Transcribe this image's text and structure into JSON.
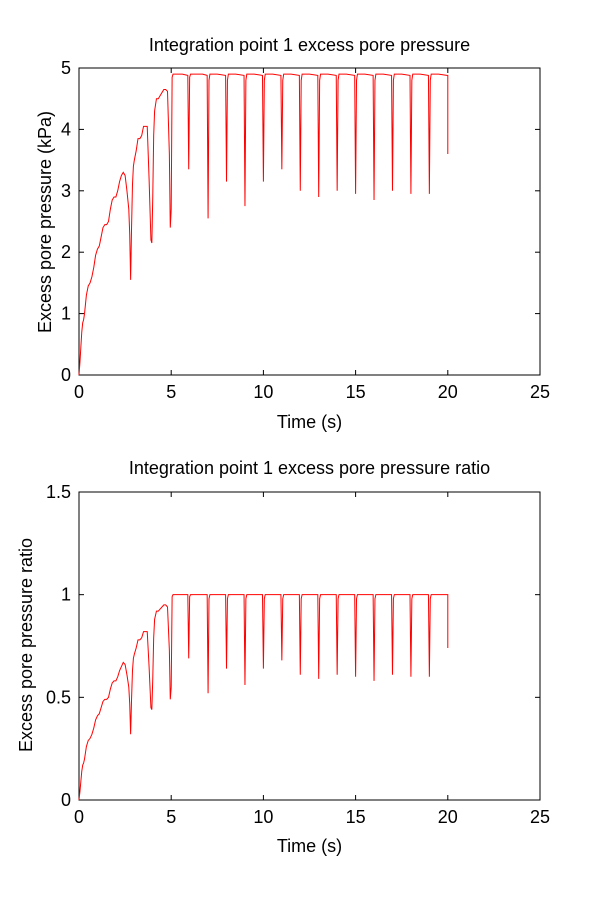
{
  "chart_data": [
    {
      "type": "line",
      "title": "Integration point 1 excess pore pressure",
      "xlabel": "Time (s)",
      "ylabel": "Excess pore pressure (kPa)",
      "xlim": [
        0,
        25
      ],
      "ylim": [
        0,
        5
      ],
      "xticks": [
        "0",
        "5",
        "10",
        "15",
        "20",
        "25"
      ],
      "yticks": [
        "0",
        "1",
        "2",
        "3",
        "4",
        "5"
      ],
      "grid": false,
      "line_color": "#ff0000",
      "series": [
        {
          "x": [
            0,
            0.05,
            0.1,
            0.15,
            0.2,
            0.25,
            0.3,
            0.35,
            0.4,
            0.5,
            0.6,
            0.7,
            0.8,
            0.9,
            1.0,
            1.1,
            1.2,
            1.3,
            1.4,
            1.5,
            1.6,
            1.7,
            1.8,
            1.9,
            2.0,
            2.1,
            2.2,
            2.3,
            2.4,
            2.5,
            2.6,
            2.7,
            2.75,
            2.8,
            2.85,
            2.9,
            2.95,
            3.0,
            3.1,
            3.2,
            3.3,
            3.4,
            3.5,
            3.6,
            3.7,
            3.8,
            3.9,
            3.95,
            4.0,
            4.05,
            4.1,
            4.2,
            4.3,
            4.4,
            4.5,
            4.6,
            4.7,
            4.8,
            4.9,
            4.95,
            5.0,
            5.05,
            5.1,
            5.3,
            5.6,
            5.9,
            5.95,
            6.0,
            6.05,
            6.1,
            6.4,
            6.7,
            6.95,
            7.0,
            7.05,
            7.1,
            7.5,
            7.95,
            8.0,
            8.05,
            8.1,
            8.5,
            8.95,
            9.0,
            9.05,
            9.1,
            9.5,
            9.95,
            10.0,
            10.05,
            10.1,
            10.5,
            10.95,
            11.0,
            11.05,
            11.1,
            11.5,
            11.95,
            12.0,
            12.05,
            12.1,
            12.5,
            12.95,
            13.0,
            13.05,
            13.1,
            13.5,
            13.95,
            14.0,
            14.05,
            14.1,
            14.5,
            14.95,
            15.0,
            15.05,
            15.1,
            15.5,
            15.95,
            16.0,
            16.05,
            16.1,
            16.5,
            16.95,
            17.0,
            17.05,
            17.1,
            17.5,
            17.95,
            18.0,
            18.05,
            18.1,
            18.5,
            18.95,
            19.0,
            19.05,
            19.1,
            19.5,
            19.95,
            20.0,
            20.0
          ],
          "y": [
            0,
            0.2,
            0.45,
            0.7,
            0.85,
            0.9,
            1.0,
            1.15,
            1.3,
            1.45,
            1.5,
            1.6,
            1.75,
            1.95,
            2.05,
            2.1,
            2.25,
            2.4,
            2.45,
            2.45,
            2.5,
            2.7,
            2.85,
            2.9,
            2.9,
            3.0,
            3.15,
            3.25,
            3.3,
            3.25,
            3.0,
            2.7,
            2.3,
            1.55,
            2.4,
            3.1,
            3.4,
            3.5,
            3.65,
            3.85,
            3.85,
            3.9,
            4.05,
            4.05,
            4.05,
            3.2,
            2.2,
            2.15,
            2.9,
            3.9,
            4.3,
            4.5,
            4.5,
            4.55,
            4.6,
            4.65,
            4.65,
            4.62,
            3.6,
            2.4,
            2.7,
            4.85,
            4.9,
            4.9,
            4.9,
            4.88,
            3.35,
            4.85,
            4.9,
            4.9,
            4.9,
            4.9,
            4.88,
            2.55,
            4.8,
            4.9,
            4.9,
            4.88,
            3.15,
            4.8,
            4.9,
            4.9,
            4.88,
            2.75,
            4.8,
            4.9,
            4.9,
            4.88,
            3.15,
            4.8,
            4.9,
            4.9,
            4.88,
            3.35,
            4.8,
            4.9,
            4.9,
            4.88,
            3.0,
            4.8,
            4.9,
            4.9,
            4.88,
            2.9,
            4.8,
            4.9,
            4.9,
            4.88,
            3.0,
            4.8,
            4.9,
            4.9,
            4.88,
            2.95,
            4.8,
            4.9,
            4.9,
            4.88,
            2.85,
            4.8,
            4.9,
            4.9,
            4.88,
            3.0,
            4.8,
            4.9,
            4.9,
            4.88,
            2.95,
            4.8,
            4.9,
            4.9,
            4.88,
            2.95,
            4.8,
            4.9,
            4.9,
            4.88,
            4.88,
            3.6
          ]
        }
      ]
    },
    {
      "type": "line",
      "title": "Integration point 1 excess pore pressure ratio",
      "xlabel": "Time (s)",
      "ylabel": "Excess pore pressure ratio",
      "xlim": [
        0,
        25
      ],
      "ylim": [
        0,
        1.5
      ],
      "xticks": [
        "0",
        "5",
        "10",
        "15",
        "20",
        "25"
      ],
      "yticks": [
        "0",
        "0.5",
        "1",
        "1.5"
      ],
      "grid": false,
      "line_color": "#ff0000",
      "series": [
        {
          "x": [
            0,
            0.05,
            0.1,
            0.15,
            0.2,
            0.25,
            0.3,
            0.35,
            0.4,
            0.5,
            0.6,
            0.7,
            0.8,
            0.9,
            1.0,
            1.1,
            1.2,
            1.3,
            1.4,
            1.5,
            1.6,
            1.7,
            1.8,
            1.9,
            2.0,
            2.1,
            2.2,
            2.3,
            2.4,
            2.5,
            2.6,
            2.7,
            2.75,
            2.8,
            2.85,
            2.9,
            2.95,
            3.0,
            3.1,
            3.2,
            3.3,
            3.4,
            3.5,
            3.6,
            3.7,
            3.8,
            3.9,
            3.95,
            4.0,
            4.05,
            4.1,
            4.2,
            4.3,
            4.4,
            4.5,
            4.6,
            4.7,
            4.8,
            4.9,
            4.95,
            5.0,
            5.05,
            5.1,
            5.3,
            5.6,
            5.9,
            5.95,
            6.0,
            6.05,
            6.1,
            6.4,
            6.7,
            6.95,
            7.0,
            7.05,
            7.1,
            7.5,
            7.95,
            8.0,
            8.05,
            8.1,
            8.5,
            8.95,
            9.0,
            9.05,
            9.1,
            9.5,
            9.95,
            10.0,
            10.05,
            10.1,
            10.5,
            10.95,
            11.0,
            11.05,
            11.1,
            11.5,
            11.95,
            12.0,
            12.05,
            12.1,
            12.5,
            12.95,
            13.0,
            13.05,
            13.1,
            13.5,
            13.95,
            14.0,
            14.05,
            14.1,
            14.5,
            14.95,
            15.0,
            15.05,
            15.1,
            15.5,
            15.95,
            16.0,
            16.05,
            16.1,
            16.5,
            16.95,
            17.0,
            17.05,
            17.1,
            17.5,
            17.95,
            18.0,
            18.05,
            18.1,
            18.5,
            18.95,
            19.0,
            19.05,
            19.1,
            19.5,
            19.95,
            20.0,
            20.0
          ],
          "y": [
            0,
            0.04,
            0.09,
            0.14,
            0.17,
            0.18,
            0.2,
            0.23,
            0.26,
            0.29,
            0.3,
            0.32,
            0.35,
            0.39,
            0.41,
            0.42,
            0.45,
            0.48,
            0.49,
            0.49,
            0.5,
            0.54,
            0.57,
            0.58,
            0.58,
            0.6,
            0.63,
            0.65,
            0.67,
            0.66,
            0.61,
            0.55,
            0.47,
            0.32,
            0.49,
            0.63,
            0.69,
            0.71,
            0.74,
            0.78,
            0.78,
            0.79,
            0.82,
            0.82,
            0.82,
            0.65,
            0.45,
            0.44,
            0.59,
            0.79,
            0.88,
            0.92,
            0.92,
            0.93,
            0.94,
            0.95,
            0.95,
            0.94,
            0.73,
            0.49,
            0.55,
            0.99,
            1.0,
            1.0,
            1.0,
            1.0,
            0.69,
            0.99,
            1.0,
            1.0,
            1.0,
            1.0,
            1.0,
            0.52,
            0.98,
            1.0,
            1.0,
            1.0,
            0.64,
            0.98,
            1.0,
            1.0,
            1.0,
            0.56,
            0.98,
            1.0,
            1.0,
            1.0,
            0.64,
            0.98,
            1.0,
            1.0,
            1.0,
            0.68,
            0.98,
            1.0,
            1.0,
            1.0,
            0.61,
            0.98,
            1.0,
            1.0,
            1.0,
            0.59,
            0.98,
            1.0,
            1.0,
            1.0,
            0.61,
            0.98,
            1.0,
            1.0,
            1.0,
            0.6,
            0.98,
            1.0,
            1.0,
            1.0,
            0.58,
            0.98,
            1.0,
            1.0,
            1.0,
            0.61,
            0.98,
            1.0,
            1.0,
            1.0,
            0.6,
            0.98,
            1.0,
            1.0,
            1.0,
            0.6,
            0.98,
            1.0,
            1.0,
            1.0,
            1.0,
            0.74
          ]
        }
      ]
    }
  ]
}
